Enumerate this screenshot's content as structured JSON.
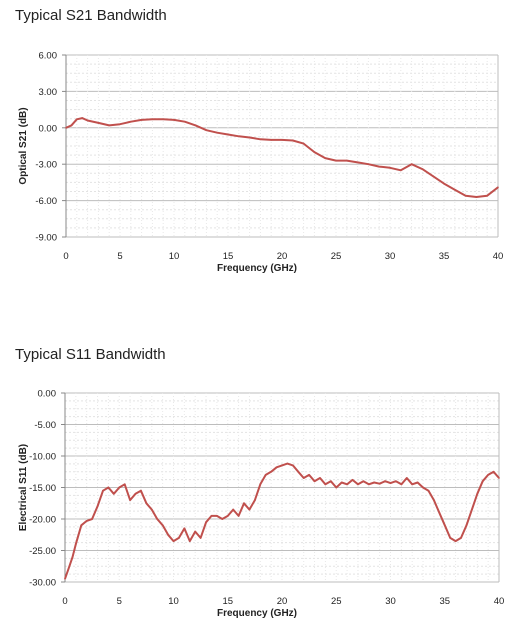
{
  "chart_data": [
    {
      "type": "line",
      "title": "Typical S21 Bandwidth",
      "xlabel": "Frequency  (GHz)",
      "ylabel": "Optical S21 (dB)",
      "xlim": [
        0,
        40
      ],
      "ylim": [
        -9,
        6
      ],
      "x_ticks": [
        0,
        5,
        10,
        15,
        20,
        25,
        30,
        35,
        40
      ],
      "y_ticks": [
        6.0,
        3.0,
        0.0,
        -3.0,
        -6.0,
        -9.0
      ],
      "x_tick_labels": [
        "0",
        "5",
        "10",
        "15",
        "20",
        "25",
        "30",
        "35",
        "40"
      ],
      "y_tick_labels": [
        "6.00",
        "3.00",
        "0.00",
        "-3.00",
        "-6.00",
        "-9.00"
      ],
      "grid": true,
      "line_color": "#c0504d",
      "series": [
        {
          "x": [
            0,
            0.5,
            1,
            1.5,
            2,
            3,
            4,
            5,
            6,
            7,
            8,
            9,
            10,
            11,
            12,
            13,
            14,
            15,
            16,
            17,
            18,
            19,
            20,
            21,
            22,
            23,
            24,
            25,
            26,
            27,
            28,
            29,
            30,
            31,
            32,
            33,
            34,
            35,
            36,
            37,
            38,
            39,
            40
          ],
          "y": [
            0.0,
            0.2,
            0.7,
            0.8,
            0.6,
            0.4,
            0.2,
            0.3,
            0.5,
            0.65,
            0.7,
            0.7,
            0.65,
            0.5,
            0.2,
            -0.2,
            -0.4,
            -0.55,
            -0.7,
            -0.8,
            -0.95,
            -1.0,
            -1.0,
            -1.05,
            -1.3,
            -2.0,
            -2.5,
            -2.7,
            -2.7,
            -2.85,
            -3.0,
            -3.2,
            -3.3,
            -3.5,
            -3.0,
            -3.4,
            -4.0,
            -4.6,
            -5.1,
            -5.6,
            -5.7,
            -5.6,
            -4.9
          ]
        }
      ]
    },
    {
      "type": "line",
      "title": "Typical S11 Bandwidth",
      "xlabel": "Frequency  (GHz)",
      "ylabel": "Electrical S11 (dB)",
      "xlim": [
        0,
        40
      ],
      "ylim": [
        -30,
        0
      ],
      "x_ticks": [
        0,
        5,
        10,
        15,
        20,
        25,
        30,
        35,
        40
      ],
      "y_ticks": [
        0,
        -5,
        -10,
        -15,
        -20,
        -25,
        -30
      ],
      "x_tick_labels": [
        "0",
        "5",
        "10",
        "15",
        "20",
        "25",
        "30",
        "35",
        "40"
      ],
      "y_tick_labels": [
        "0.00",
        "-5.00",
        "-10.00",
        "-15.00",
        "-20.00",
        "-25.00",
        "-30.00"
      ],
      "grid": true,
      "line_color": "#c0504d",
      "series": [
        {
          "x": [
            0,
            0.3,
            0.7,
            1,
            1.5,
            2,
            2.5,
            3,
            3.5,
            4,
            4.5,
            5,
            5.5,
            6,
            6.5,
            7,
            7.5,
            8,
            8.5,
            9,
            9.5,
            10,
            10.5,
            11,
            11.5,
            12,
            12.5,
            13,
            13.5,
            14,
            14.5,
            15,
            15.5,
            16,
            16.5,
            17,
            17.5,
            18,
            18.5,
            19,
            19.5,
            20,
            20.5,
            21,
            21.5,
            22,
            22.5,
            23,
            23.5,
            24,
            24.5,
            25,
            25.5,
            26,
            26.5,
            27,
            27.5,
            28,
            28.5,
            29,
            29.5,
            30,
            30.5,
            31,
            31.5,
            32,
            32.5,
            33,
            33.5,
            34,
            34.5,
            35,
            35.5,
            36,
            36.5,
            37,
            37.5,
            38,
            38.5,
            39,
            39.5,
            40
          ],
          "y": [
            -29.5,
            -28,
            -26,
            -24,
            -21,
            -20.3,
            -20,
            -18,
            -15.5,
            -15,
            -16,
            -15,
            -14.5,
            -17,
            -16,
            -15.5,
            -17.5,
            -18.5,
            -20,
            -21,
            -22.5,
            -23.5,
            -23,
            -21.5,
            -23.5,
            -22,
            -23,
            -20.5,
            -19.5,
            -19.5,
            -20,
            -19.5,
            -18.5,
            -19.5,
            -17.5,
            -18.5,
            -17,
            -14.5,
            -13,
            -12.5,
            -11.8,
            -11.5,
            -11.2,
            -11.5,
            -12.5,
            -13.5,
            -13,
            -14,
            -13.5,
            -14.5,
            -14,
            -15,
            -14.2,
            -14.5,
            -13.8,
            -14.5,
            -14,
            -14.5,
            -14.2,
            -14.4,
            -14,
            -14.3,
            -14,
            -14.5,
            -13.5,
            -14.5,
            -14.2,
            -15,
            -15.5,
            -17,
            -19,
            -21,
            -23,
            -23.5,
            -23,
            -21,
            -18.5,
            -16,
            -14,
            -13,
            -12.5,
            -13.5
          ]
        }
      ]
    }
  ]
}
